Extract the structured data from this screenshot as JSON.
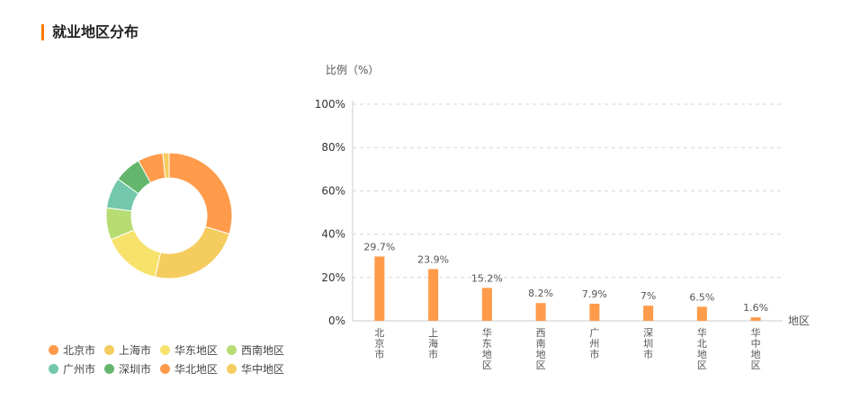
{
  "page": {
    "section_title": "就业地区分布"
  },
  "chart_data": {
    "type": "bar",
    "companion_chart": "donut",
    "ylabel": "比例（%）",
    "xlabel": "地区",
    "ylim": [
      0,
      100
    ],
    "y_ticks": [
      "0%",
      "20%",
      "40%",
      "60%",
      "80%",
      "100%"
    ],
    "grid": true,
    "categories": [
      "北京市",
      "上海市",
      "华东地区",
      "西南地区",
      "广州市",
      "深圳市",
      "华北地区",
      "华中地区"
    ],
    "values": [
      29.7,
      23.9,
      15.2,
      8.2,
      7.9,
      7.0,
      6.5,
      1.6
    ],
    "value_labels": [
      "29.7%",
      "23.9%",
      "15.2%",
      "8.2%",
      "7.9%",
      "7%",
      "6.5%",
      "1.6%"
    ],
    "bar_color": "#ff9b4a",
    "slice_colors": [
      "#ff9b4a",
      "#f5cc5e",
      "#f7e26b",
      "#b7dc74",
      "#73c7aa",
      "#65b66d",
      "#ff9b4a",
      "#f5cc5e"
    ],
    "legend_position": "bottom-left"
  }
}
